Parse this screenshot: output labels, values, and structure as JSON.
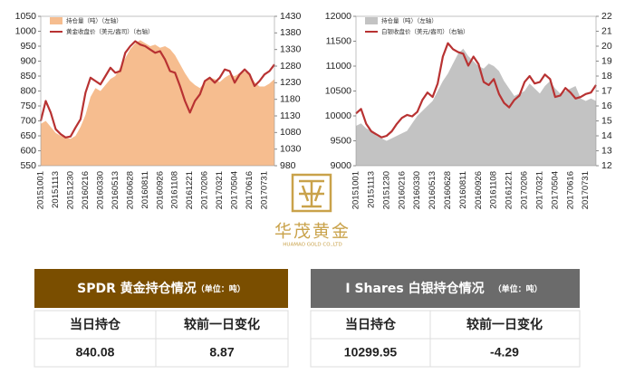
{
  "chart_data": [
    {
      "type": "line",
      "categories": [
        "20151001",
        null,
        null,
        "20151113",
        null,
        null,
        "20151230",
        null,
        null,
        "20160216",
        null,
        null,
        "20160330",
        null,
        null,
        "20160513",
        null,
        null,
        "20160628",
        null,
        null,
        "20160811",
        null,
        null,
        "20160926",
        null,
        null,
        "20161108",
        null,
        null,
        "20161221",
        null,
        null,
        "20170206",
        null,
        null,
        "20170321",
        null,
        null,
        "20170504",
        null,
        null,
        "20170616",
        null,
        null,
        "20170731",
        null,
        null
      ],
      "ylim": [
        550,
        1050
      ],
      "yticks": [
        550,
        600,
        650,
        700,
        750,
        800,
        850,
        900,
        950,
        1000,
        1050
      ],
      "y2lim": [
        980,
        1430
      ],
      "y2ticks": [
        980,
        1030,
        1080,
        1130,
        1180,
        1230,
        1280,
        1330,
        1380,
        1430
      ],
      "series": [
        {
          "name": "持仓量（吨）（左轴）",
          "style": "area",
          "color": "#f6bd8f",
          "values": [
            690,
            700,
            680,
            660,
            650,
            645,
            640,
            650,
            680,
            720,
            780,
            810,
            800,
            820,
            840,
            850,
            880,
            910,
            940,
            960,
            970,
            960,
            950,
            955,
            945,
            950,
            940,
            920,
            890,
            860,
            835,
            820,
            810,
            830,
            845,
            840,
            830,
            845,
            855,
            850,
            860,
            865,
            855,
            830,
            815,
            815,
            825,
            840
          ]
        },
        {
          "name": "黄金收盘价（美元/盎司）（右轴）",
          "style": "line",
          "axis": "y2",
          "color": "#b83232",
          "values": [
            1115,
            1175,
            1140,
            1090,
            1075,
            1065,
            1068,
            1095,
            1120,
            1200,
            1245,
            1235,
            1225,
            1250,
            1275,
            1260,
            1265,
            1320,
            1340,
            1355,
            1345,
            1340,
            1330,
            1320,
            1325,
            1300,
            1265,
            1260,
            1220,
            1175,
            1140,
            1175,
            1195,
            1235,
            1245,
            1230,
            1245,
            1270,
            1265,
            1230,
            1255,
            1270,
            1255,
            1220,
            1235,
            1255,
            1265,
            1285
          ]
        }
      ]
    },
    {
      "type": "line",
      "categories": [
        "20151001",
        null,
        null,
        "20151113",
        null,
        null,
        "20151230",
        null,
        null,
        "20160216",
        null,
        null,
        "20160330",
        null,
        null,
        "20160513",
        null,
        null,
        "20160628",
        null,
        null,
        "20160811",
        null,
        null,
        "20160926",
        null,
        null,
        "20161108",
        null,
        null,
        "20161221",
        null,
        null,
        "20170206",
        null,
        null,
        "20170321",
        null,
        null,
        "20170504",
        null,
        null,
        "20170616",
        null,
        null,
        "20170731",
        null,
        null
      ],
      "ylim": [
        9000,
        12000
      ],
      "yticks": [
        9000,
        9500,
        10000,
        10500,
        11000,
        11500,
        12000
      ],
      "y2lim": [
        12,
        22
      ],
      "y2ticks": [
        12,
        13,
        14,
        15,
        16,
        17,
        18,
        19,
        20,
        21,
        22
      ],
      "series": [
        {
          "name": "持仓量（吨）（左轴）",
          "style": "area",
          "color": "#c3c3c3",
          "values": [
            9800,
            9850,
            9750,
            9700,
            9600,
            9550,
            9500,
            9550,
            9600,
            9650,
            9700,
            9850,
            10000,
            10100,
            10200,
            10300,
            10500,
            10700,
            10850,
            11050,
            11250,
            11350,
            11200,
            11100,
            11000,
            10950,
            11050,
            11000,
            10900,
            10700,
            10550,
            10400,
            10450,
            10500,
            10650,
            10550,
            10450,
            10600,
            10700,
            10550,
            10450,
            10500,
            10550,
            10600,
            10350,
            10300,
            10350,
            10300
          ]
        },
        {
          "name": "白银收盘价（美元/盎司）（右轴）",
          "style": "line",
          "axis": "y2",
          "color": "#b83232",
          "values": [
            15.5,
            15.8,
            14.8,
            14.3,
            14.1,
            13.9,
            14.0,
            14.3,
            14.8,
            15.2,
            15.4,
            15.3,
            15.6,
            16.4,
            16.9,
            16.6,
            17.5,
            19.3,
            20.2,
            19.8,
            19.6,
            19.5,
            18.7,
            19.3,
            18.8,
            17.6,
            17.4,
            17.8,
            16.8,
            16.2,
            15.9,
            16.4,
            16.7,
            17.6,
            18.0,
            17.5,
            17.6,
            18.1,
            17.8,
            16.6,
            16.7,
            17.2,
            16.9,
            16.5,
            16.6,
            16.8,
            16.9,
            17.4
          ]
        }
      ]
    }
  ],
  "logo": {
    "name": "华茂黄金",
    "subtitle": "HUAMAO GOLD CO.,LTD"
  },
  "tables": [
    {
      "title": "SPDR 黄金持仓情况",
      "unit": "（单位：吨）",
      "headers": [
        "当日持仓",
        "较前一日变化"
      ],
      "row": [
        840.08,
        8.87
      ]
    },
    {
      "title": "I Shares 白银持仓情况",
      "unit": "（单位：吨）",
      "headers": [
        "当日持仓",
        "较前一日变化"
      ],
      "row": [
        10299.95,
        -4.29
      ]
    }
  ]
}
